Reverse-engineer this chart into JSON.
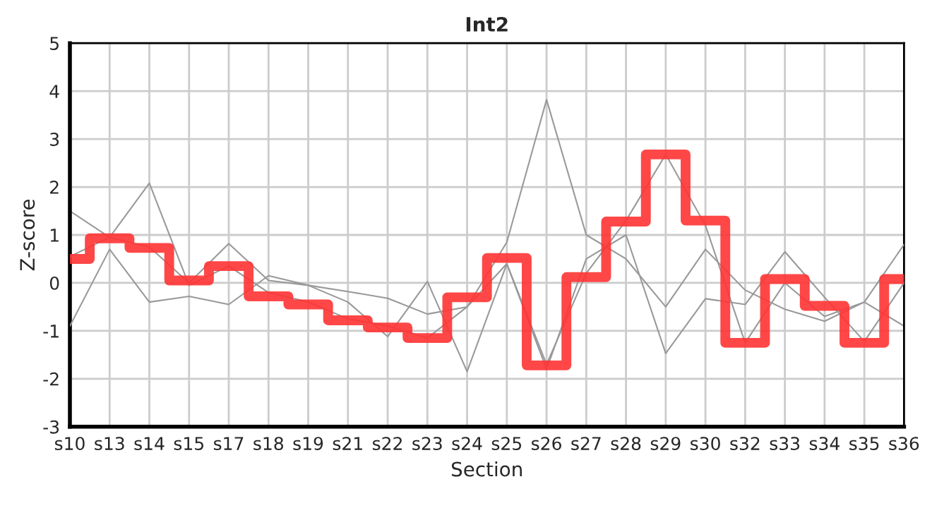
{
  "chart_data": {
    "type": "line",
    "title": "Int2",
    "xlabel": "Section",
    "ylabel": "Z-score",
    "categories": [
      "s10",
      "s13",
      "s14",
      "s15",
      "s17",
      "s18",
      "s19",
      "s21",
      "s22",
      "s23",
      "s24",
      "s25",
      "s26",
      "s27",
      "s28",
      "s29",
      "s30",
      "s32",
      "s33",
      "s34",
      "s35",
      "s36"
    ],
    "series": [
      {
        "color": "#999999",
        "values": [
          1.5,
          0.95,
          2.08,
          -0.05,
          0.35,
          -0.2,
          -0.4,
          -0.75,
          -0.9,
          -1.15,
          -0.5,
          0.85,
          3.82,
          1.0,
          0.5,
          -0.5,
          0.7,
          -0.15,
          -0.55,
          -0.8,
          -0.4,
          -0.9
        ]
      },
      {
        "color": "#999999",
        "values": [
          -0.9,
          0.7,
          -0.4,
          -0.28,
          -0.45,
          0.15,
          -0.05,
          -0.4,
          -1.12,
          0.03,
          -1.85,
          0.4,
          -1.8,
          0.5,
          1.0,
          -1.47,
          -0.33,
          -0.45,
          0.65,
          -0.3,
          -1.22,
          0.0
        ]
      },
      {
        "color": "#999999",
        "values": [
          0.55,
          0.95,
          0.75,
          0.0,
          0.82,
          0.05,
          -0.05,
          -0.18,
          -0.32,
          -0.65,
          -0.5,
          0.4,
          -1.7,
          0.2,
          1.3,
          2.68,
          1.2,
          -1.25,
          0.0,
          -0.7,
          -0.4,
          0.8
        ]
      },
      {
        "type": "step",
        "color": "#ff3333",
        "values": [
          0.5,
          0.93,
          0.73,
          0.05,
          0.35,
          -0.28,
          -0.45,
          -0.78,
          -0.93,
          -1.15,
          -0.3,
          0.52,
          -1.72,
          0.12,
          1.28,
          2.68,
          1.3,
          -1.25,
          0.08,
          -0.48,
          -1.25,
          0.08
        ]
      }
    ],
    "ylim": [
      -3,
      5
    ],
    "yticks": [
      -3,
      -2,
      -1,
      0,
      1,
      2,
      3,
      4,
      5
    ],
    "grid": true
  }
}
